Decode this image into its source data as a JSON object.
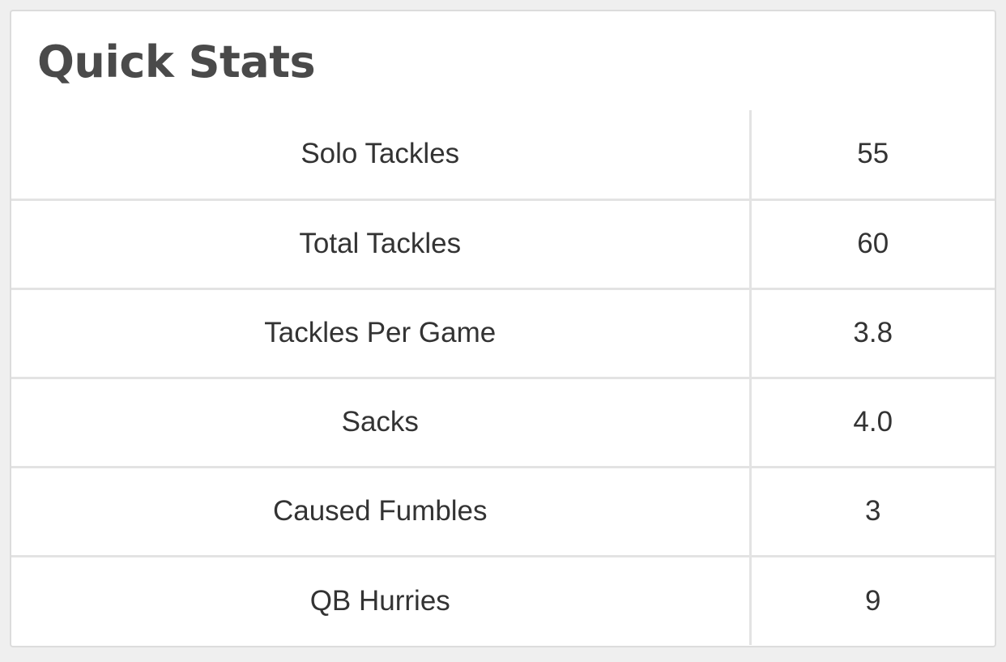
{
  "card": {
    "title": "Quick Stats"
  },
  "stats": [
    {
      "label": "Solo Tackles",
      "value": "55"
    },
    {
      "label": "Total Tackles",
      "value": "60"
    },
    {
      "label": "Tackles Per Game",
      "value": "3.8"
    },
    {
      "label": "Sacks",
      "value": "4.0"
    },
    {
      "label": "Caused Fumbles",
      "value": "3"
    },
    {
      "label": "QB Hurries",
      "value": "9"
    }
  ]
}
